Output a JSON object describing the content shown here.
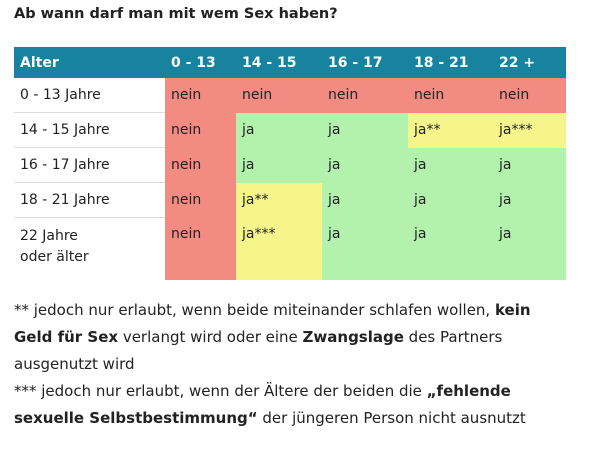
{
  "title": "Ab wann darf man mit wem Sex haben?",
  "table": {
    "header": [
      "Alter",
      "0 - 13",
      "14 - 15",
      "16 - 17",
      "18 - 21",
      "22 +"
    ],
    "rows": [
      [
        "0 - 13 Jahre",
        "nein",
        "nein",
        "nein",
        "nein",
        "nein"
      ],
      [
        "14 - 15 Jahre",
        "nein",
        "ja",
        "ja",
        "ja**",
        "ja***"
      ],
      [
        "16 - 17 Jahre",
        "nein",
        "ja",
        "ja",
        "ja",
        "ja"
      ],
      [
        "18 - 21 Jahre",
        "nein",
        "ja**",
        "ja",
        "ja",
        "ja"
      ],
      [
        "22 Jahre oder älter",
        "nein",
        "ja***",
        "ja",
        "ja",
        "ja"
      ]
    ]
  },
  "footnotes": [
    [
      "** jedoch nur erlaubt, wenn beide miteinander schlafen wollen, ",
      "kein Geld für Sex",
      " verlangt wird oder eine ",
      "Zwangslage",
      " des Partners ausgenutzt wird"
    ],
    [
      "*** jedoch nur erlaubt, wenn der Ältere der beiden die ",
      "„fehlende sexuelle Selbstbestimmung“",
      " der jüngeren Person nicht ausnutzt"
    ]
  ]
}
